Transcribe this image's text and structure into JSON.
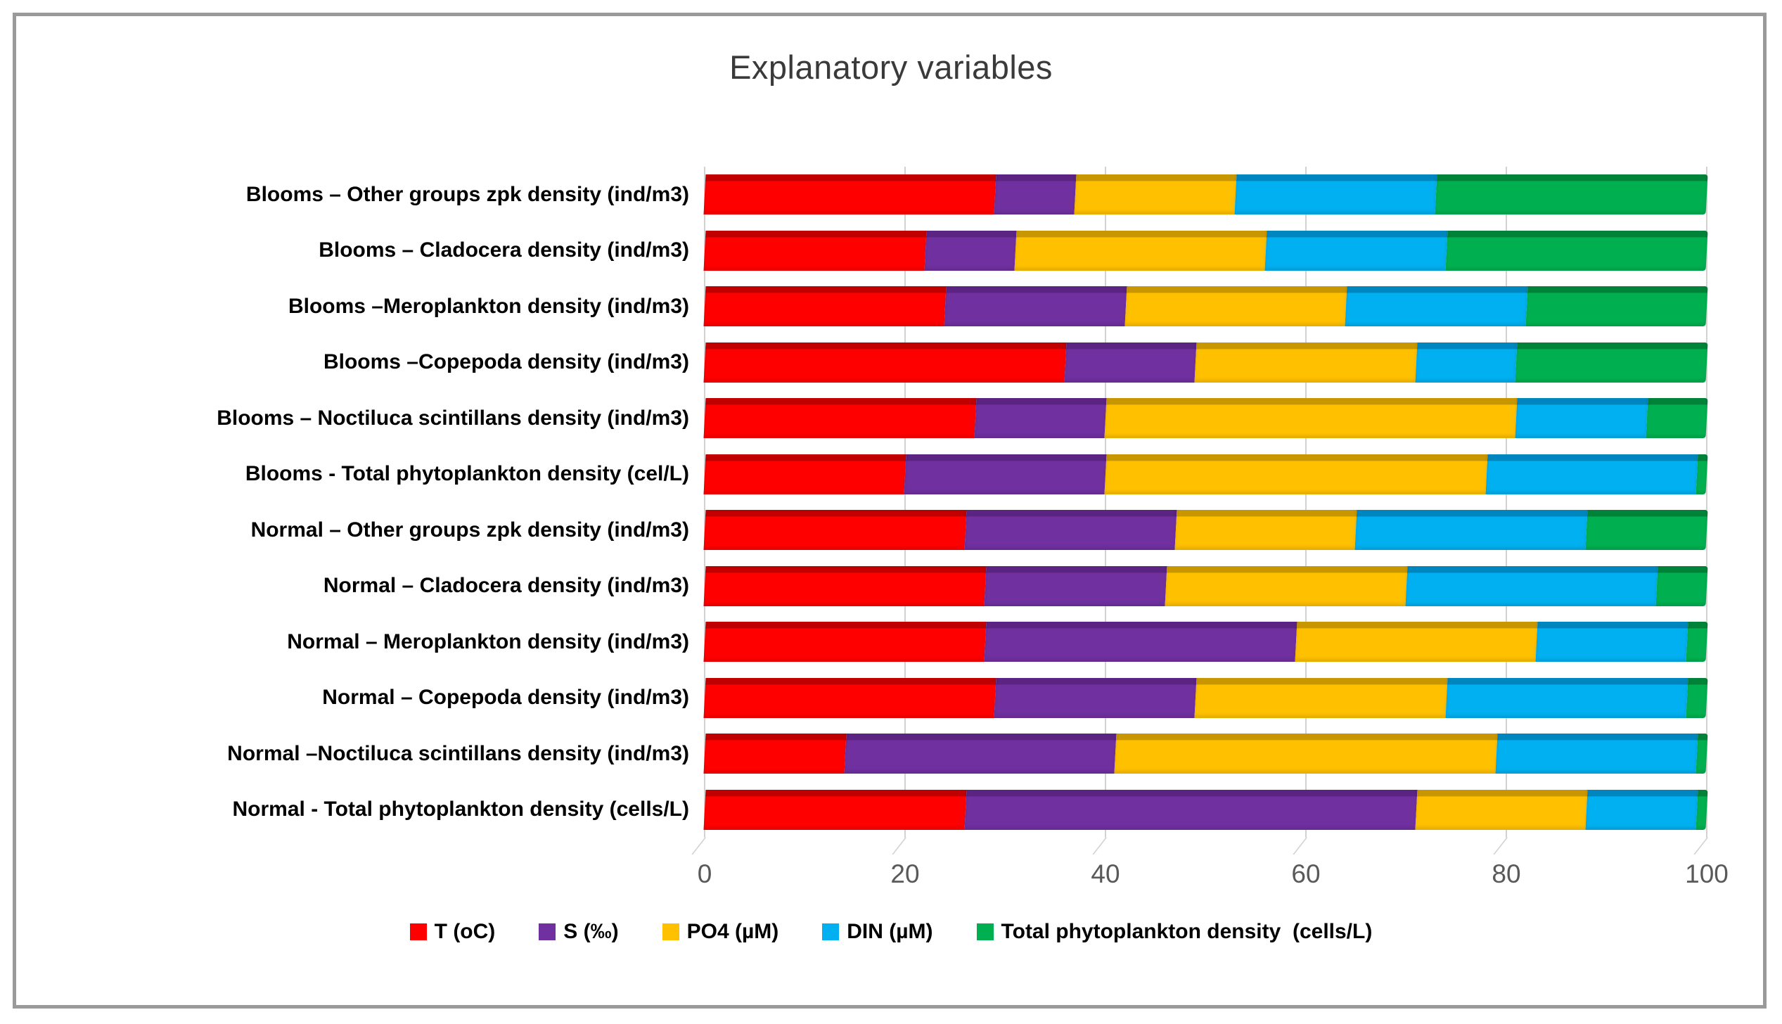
{
  "chart_data": {
    "type": "bar",
    "orientation": "horizontal",
    "stacked_100_percent": true,
    "title": "Explanatory variables",
    "categories": [
      "Blooms – Other groups zpk density (ind/m3)",
      "Blooms – Cladocera density (ind/m3)",
      "Blooms –Meroplankton density (ind/m3)",
      "Blooms –Copepoda density (ind/m3)",
      "Blooms – Noctiluca scintillans density (ind/m3)",
      "Blooms - Total phytoplankton density (cel/L)",
      "Normal – Other groups zpk density (ind/m3)",
      "Normal – Cladocera density (ind/m3)",
      "Normal – Meroplankton density (ind/m3)",
      "Normal – Copepoda density (ind/m3)",
      "Normal –Noctiluca scintillans density (ind/m3)",
      "Normal  - Total phytoplankton density (cells/L)"
    ],
    "series": [
      {
        "name": "T (oC)",
        "color": "#FF0000",
        "dark": "#C00000",
        "values": [
          29,
          22,
          24,
          36,
          27,
          20,
          26,
          28,
          28,
          29,
          14,
          26
        ]
      },
      {
        "name": "S (‰)",
        "color": "#7030A0",
        "dark": "#5B2382",
        "values": [
          8,
          9,
          18,
          13,
          13,
          20,
          21,
          18,
          31,
          20,
          27,
          45
        ]
      },
      {
        "name": "PO4 (µM)",
        "color": "#FFC000",
        "dark": "#C89600",
        "values": [
          16,
          25,
          22,
          22,
          41,
          38,
          18,
          24,
          24,
          25,
          38,
          17
        ]
      },
      {
        "name": "DIN (µM)",
        "color": "#00B0F0",
        "dark": "#0086BE",
        "values": [
          20,
          18,
          18,
          10,
          13,
          21,
          23,
          25,
          15,
          24,
          20,
          11
        ]
      },
      {
        "name": "Total phytoplankton density  (cells/L)",
        "color": "#00B050",
        "dark": "#008238",
        "values": [
          27,
          26,
          18,
          19,
          6,
          1,
          12,
          5,
          2,
          2,
          1,
          1
        ]
      }
    ],
    "x_axis": {
      "min": 0,
      "max": 100,
      "ticks": [
        0,
        20,
        40,
        60,
        80,
        100
      ]
    },
    "grid": true,
    "legend_position": "bottom",
    "colors": {
      "gridline": "#d2d2d2",
      "tick_label": "#595959",
      "title_text": "#3a3a3a",
      "frame_border": "#9a9a9a",
      "background": "#ffffff"
    }
  }
}
